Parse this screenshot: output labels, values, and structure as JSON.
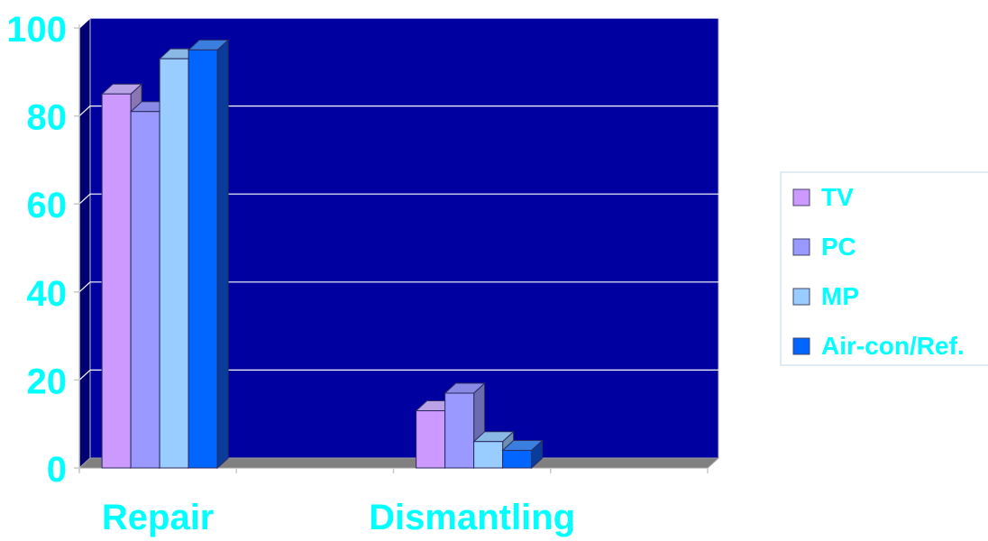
{
  "chart_data": {
    "type": "bar",
    "categories": [
      "Repair",
      "Dismantling"
    ],
    "series": [
      {
        "name": "TV",
        "values": [
          85,
          13
        ],
        "color": "#cc99ff",
        "side": "#8877b0",
        "top": "#b9a2e6"
      },
      {
        "name": "PC",
        "values": [
          81,
          17
        ],
        "color": "#9999ff",
        "side": "#6b6bb0",
        "top": "#8a8ae6"
      },
      {
        "name": "MP",
        "values": [
          93,
          6
        ],
        "color": "#99ccff",
        "side": "#6d8fb3",
        "top": "#8ab9e6"
      },
      {
        "name": "Air-con/Ref.",
        "values": [
          95,
          4
        ],
        "color": "#0066ff",
        "side": "#0a3c99",
        "top": "#3a7fe0"
      }
    ],
    "yticks": [
      0,
      20,
      40,
      60,
      80,
      100
    ],
    "ylim": [
      0,
      100
    ],
    "grid": true,
    "legend_position": "right",
    "colors": {
      "plot_background": "#0000a0",
      "label_text": "#00ffff",
      "gridline": "#ffffff",
      "floor": "#808080"
    }
  }
}
